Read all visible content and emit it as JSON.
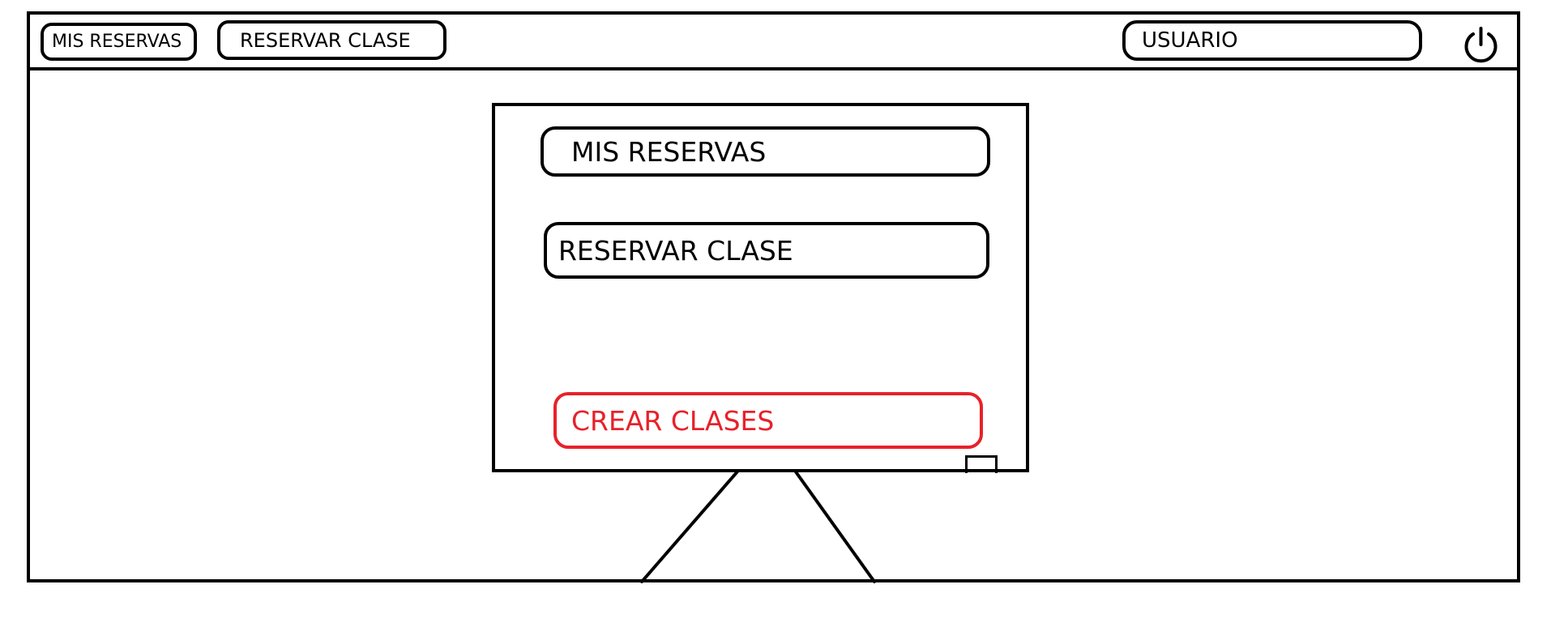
{
  "topbar": {
    "mis_reservas_label": "MIS RESERVAS",
    "reservar_clase_label": "RESERVAR CLASE",
    "usuario_label": "USUARIO",
    "logout_icon": "power-icon"
  },
  "board": {
    "mis_reservas_label": "MIS RESERVAS",
    "reservar_clase_label": "RESERVAR CLASE",
    "crear_clases_label": "CREAR CLASES"
  },
  "colors": {
    "ink": "#000000",
    "accent": "#e8212a",
    "background": "#ffffff"
  }
}
